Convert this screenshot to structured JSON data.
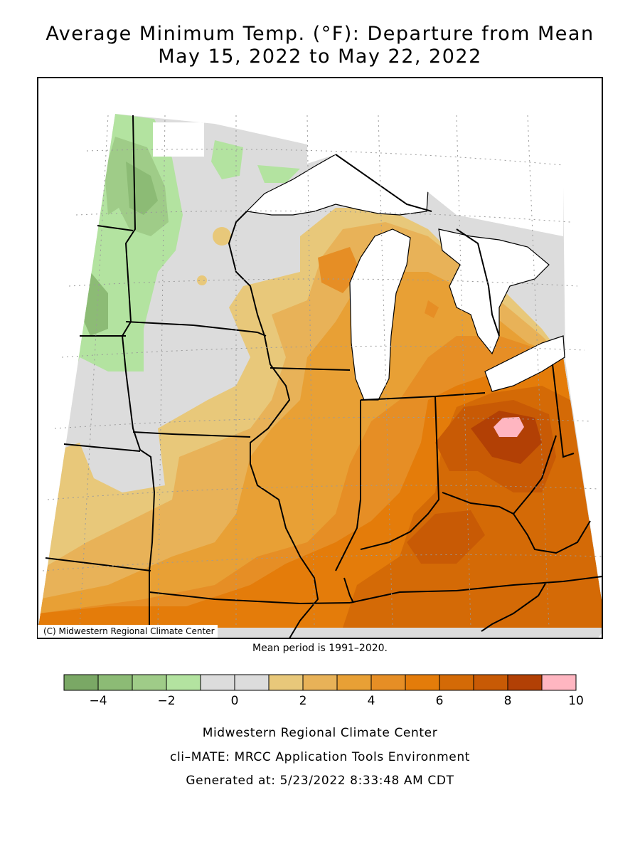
{
  "title": {
    "line1": "Average Minimum Temp. (°F): Departure from Mean",
    "line2": "May 15, 2022 to May 22, 2022"
  },
  "map": {
    "copyright": "(C) Midwestern Regional Climate Center",
    "mean_period": "Mean period is 1991–2020.",
    "region": "Midwest United States",
    "lakes_color": "#ffffff",
    "border_color": "#000000",
    "grid": "dotted lat/lon graticule"
  },
  "colorbar": {
    "min": -5,
    "max": 10,
    "step": 1,
    "ticks": [
      "−4",
      "−2",
      "0",
      "2",
      "4",
      "6",
      "8",
      "10"
    ],
    "tick_values": [
      -4,
      -2,
      0,
      2,
      4,
      6,
      8,
      10
    ],
    "colors": [
      "#7aa865",
      "#8cbb75",
      "#9fcc88",
      "#b3e3a0",
      "#dcdcdc",
      "#dcdcdc",
      "#e8c87a",
      "#e8b258",
      "#e8a035",
      "#e68e25",
      "#e47c0a",
      "#d46a06",
      "#c85a05",
      "#b24005",
      "#ffb6c1"
    ]
  },
  "footer": {
    "line1": "Midwestern Regional Climate Center",
    "line2": "cli–MATE: MRCC Application Tools Environment",
    "line3": "Generated at: 5/23/2022 8:33:48 AM CDT"
  }
}
